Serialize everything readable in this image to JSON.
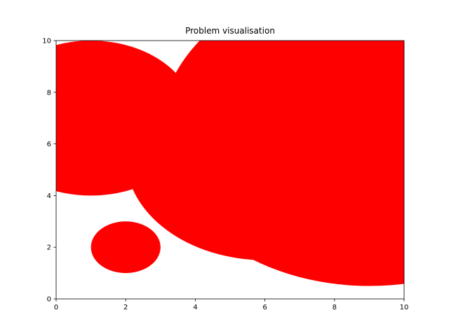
{
  "chart_data": {
    "type": "scatter",
    "title": "Problem visualisation",
    "xlabel": "",
    "ylabel": "",
    "xlim": [
      0,
      10
    ],
    "ylim": [
      0,
      10
    ],
    "xticks": [
      "0",
      "2",
      "4",
      "6",
      "8",
      "10"
    ],
    "yticks": [
      "0",
      "2",
      "4",
      "6",
      "8",
      "10"
    ],
    "grid": false,
    "series": [
      {
        "marker": "circle",
        "color": "#ff0000",
        "points": [
          {
            "x": 1,
            "y": 7,
            "r": 3
          },
          {
            "x": 2,
            "y": 2,
            "r": 1
          },
          {
            "x": 6,
            "y": 5.5,
            "r": 4
          },
          {
            "x": 9,
            "y": 6.5,
            "r": 6
          }
        ]
      }
    ]
  }
}
